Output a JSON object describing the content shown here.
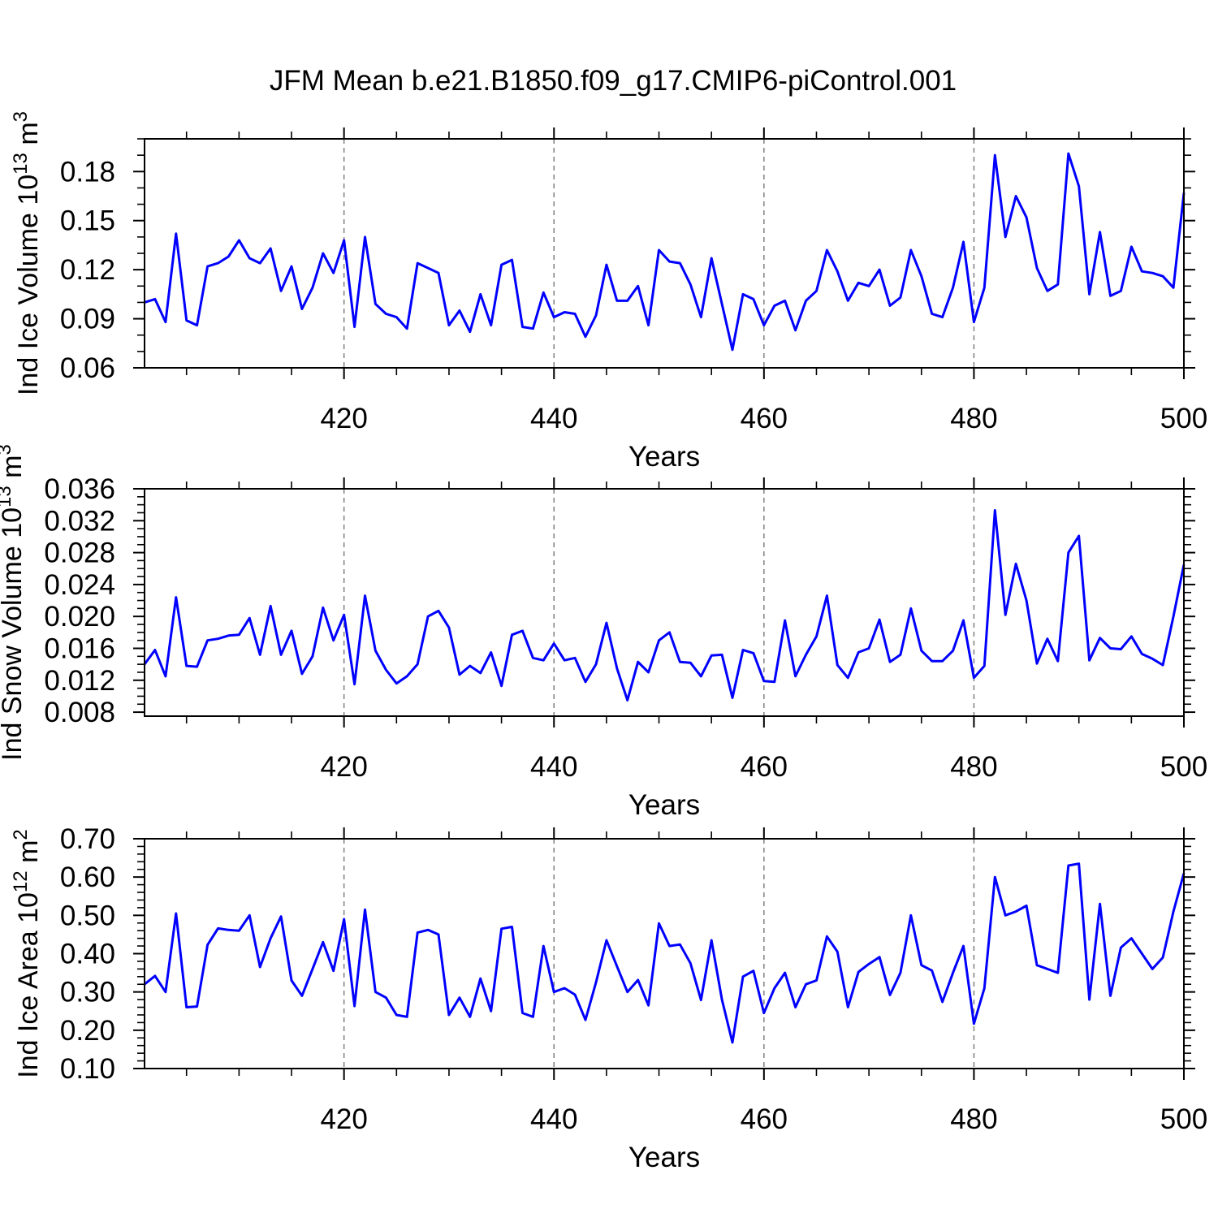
{
  "title": "JFM Mean b.e21.B1850.f09_g17.CMIP6-piControl.001",
  "colors": {
    "line": "#0000ff",
    "grid": "#808080",
    "frame": "#000000",
    "text": "#000000",
    "background": "#ffffff"
  },
  "chart_data": [
    {
      "type": "line",
      "name": "ind-ice-volume",
      "ylabel_parts": [
        [
          "t",
          "Ind Ice Volume 10"
        ],
        [
          "s",
          "13"
        ],
        [
          "t",
          " m"
        ],
        [
          "s",
          "3"
        ]
      ],
      "x": {
        "label": "Years",
        "start": 401,
        "end": 500,
        "major_ticks": [
          420,
          440,
          460,
          480,
          500
        ],
        "major_labels": [
          "420",
          "440",
          "460",
          "480",
          "500"
        ],
        "minor_step": 5,
        "gridlines": [
          420,
          440,
          460,
          480
        ]
      },
      "y": {
        "min": 0.06,
        "max": 0.2,
        "major_ticks": [
          0.06,
          0.09,
          0.12,
          0.15,
          0.18
        ],
        "major_labels": [
          "0.06",
          "0.09",
          "0.12",
          "0.15",
          "0.18"
        ],
        "minor_step": 0.01
      },
      "values": [
        0.1,
        0.102,
        0.088,
        0.142,
        0.089,
        0.086,
        0.122,
        0.124,
        0.128,
        0.138,
        0.127,
        0.124,
        0.133,
        0.107,
        0.122,
        0.096,
        0.109,
        0.13,
        0.118,
        0.138,
        0.085,
        0.14,
        0.099,
        0.093,
        0.091,
        0.084,
        0.124,
        0.121,
        0.118,
        0.086,
        0.095,
        0.082,
        0.105,
        0.086,
        0.123,
        0.126,
        0.085,
        0.084,
        0.106,
        0.091,
        0.094,
        0.093,
        0.079,
        0.092,
        0.123,
        0.101,
        0.101,
        0.11,
        0.086,
        0.132,
        0.125,
        0.124,
        0.111,
        0.091,
        0.127,
        0.099,
        0.071,
        0.105,
        0.102,
        0.086,
        0.098,
        0.101,
        0.083,
        0.101,
        0.107,
        0.132,
        0.119,
        0.101,
        0.112,
        0.11,
        0.12,
        0.098,
        0.103,
        0.132,
        0.116,
        0.093,
        0.091,
        0.109,
        0.137,
        0.088,
        0.109,
        0.19,
        0.14,
        0.165,
        0.152,
        0.121,
        0.107,
        0.111,
        0.191,
        0.171,
        0.105,
        0.143,
        0.104,
        0.107,
        0.134,
        0.119,
        0.118,
        0.116,
        0.109,
        0.167
      ]
    },
    {
      "type": "line",
      "name": "ind-snow-volume",
      "ylabel_parts": [
        [
          "t",
          "Ind Snow Volume 10"
        ],
        [
          "s",
          "13"
        ],
        [
          "t",
          " m"
        ],
        [
          "s",
          "3"
        ]
      ],
      "x": {
        "label": "Years",
        "start": 401,
        "end": 500,
        "major_ticks": [
          420,
          440,
          460,
          480,
          500
        ],
        "major_labels": [
          "420",
          "440",
          "460",
          "480",
          "500"
        ],
        "minor_step": 5,
        "gridlines": [
          420,
          440,
          460,
          480
        ]
      },
      "y": {
        "min": 0.0075,
        "max": 0.036,
        "major_ticks": [
          0.008,
          0.012,
          0.016,
          0.02,
          0.024,
          0.028,
          0.032,
          0.036
        ],
        "major_labels": [
          "0.008",
          "0.012",
          "0.016",
          "0.020",
          "0.024",
          "0.028",
          "0.032",
          "0.036"
        ],
        "minor_step": 0.001
      },
      "values": [
        0.014,
        0.0158,
        0.0125,
        0.0224,
        0.0138,
        0.0137,
        0.017,
        0.0172,
        0.0176,
        0.0177,
        0.0198,
        0.0152,
        0.0213,
        0.0152,
        0.0182,
        0.0128,
        0.015,
        0.0211,
        0.017,
        0.0202,
        0.0115,
        0.0226,
        0.0157,
        0.0133,
        0.0116,
        0.0125,
        0.014,
        0.02,
        0.0207,
        0.0186,
        0.0127,
        0.0138,
        0.0129,
        0.0155,
        0.0113,
        0.0177,
        0.0182,
        0.0148,
        0.0145,
        0.0166,
        0.0145,
        0.0148,
        0.0118,
        0.014,
        0.0192,
        0.0135,
        0.0095,
        0.0143,
        0.013,
        0.017,
        0.018,
        0.0143,
        0.0142,
        0.0125,
        0.0151,
        0.0152,
        0.0098,
        0.0158,
        0.0154,
        0.0119,
        0.0118,
        0.0195,
        0.0125,
        0.0152,
        0.0175,
        0.0226,
        0.0139,
        0.0123,
        0.0155,
        0.016,
        0.0196,
        0.0143,
        0.0152,
        0.021,
        0.0157,
        0.0144,
        0.0144,
        0.0157,
        0.0195,
        0.0123,
        0.0138,
        0.0333,
        0.0202,
        0.0266,
        0.022,
        0.0141,
        0.0172,
        0.0144,
        0.028,
        0.0301,
        0.0145,
        0.0173,
        0.016,
        0.0159,
        0.0175,
        0.0153,
        0.0147,
        0.0139,
        0.02,
        0.0265
      ]
    },
    {
      "type": "line",
      "name": "ind-ice-area",
      "ylabel_parts": [
        [
          "t",
          "Ind Ice Area 10"
        ],
        [
          "s",
          "12"
        ],
        [
          "t",
          " m"
        ],
        [
          "s",
          "2"
        ]
      ],
      "x": {
        "label": "Years",
        "start": 401,
        "end": 500,
        "major_ticks": [
          420,
          440,
          460,
          480,
          500
        ],
        "major_labels": [
          "420",
          "440",
          "460",
          "480",
          "500"
        ],
        "minor_step": 5,
        "gridlines": [
          420,
          440,
          460,
          480
        ]
      },
      "y": {
        "min": 0.1,
        "max": 0.7,
        "major_ticks": [
          0.1,
          0.2,
          0.3,
          0.4,
          0.5,
          0.6,
          0.7
        ],
        "major_labels": [
          "0.10",
          "0.20",
          "0.30",
          "0.40",
          "0.50",
          "0.60",
          "0.70"
        ],
        "minor_step": 0.02
      },
      "values": [
        0.32,
        0.342,
        0.3,
        0.505,
        0.26,
        0.262,
        0.423,
        0.466,
        0.462,
        0.46,
        0.5,
        0.365,
        0.44,
        0.497,
        0.33,
        0.29,
        0.36,
        0.43,
        0.355,
        0.49,
        0.263,
        0.515,
        0.3,
        0.285,
        0.24,
        0.235,
        0.455,
        0.462,
        0.45,
        0.24,
        0.285,
        0.235,
        0.335,
        0.25,
        0.465,
        0.47,
        0.245,
        0.235,
        0.42,
        0.3,
        0.31,
        0.293,
        0.227,
        0.325,
        0.435,
        0.367,
        0.3,
        0.331,
        0.265,
        0.479,
        0.42,
        0.424,
        0.375,
        0.279,
        0.435,
        0.28,
        0.168,
        0.34,
        0.355,
        0.245,
        0.31,
        0.35,
        0.26,
        0.32,
        0.33,
        0.445,
        0.405,
        0.26,
        0.352,
        0.373,
        0.391,
        0.292,
        0.35,
        0.5,
        0.37,
        0.356,
        0.274,
        0.35,
        0.42,
        0.217,
        0.31,
        0.6,
        0.5,
        0.51,
        0.525,
        0.37,
        0.36,
        0.35,
        0.63,
        0.635,
        0.28,
        0.53,
        0.29,
        0.416,
        0.44,
        0.4,
        0.36,
        0.39,
        0.51,
        0.61
      ]
    }
  ]
}
